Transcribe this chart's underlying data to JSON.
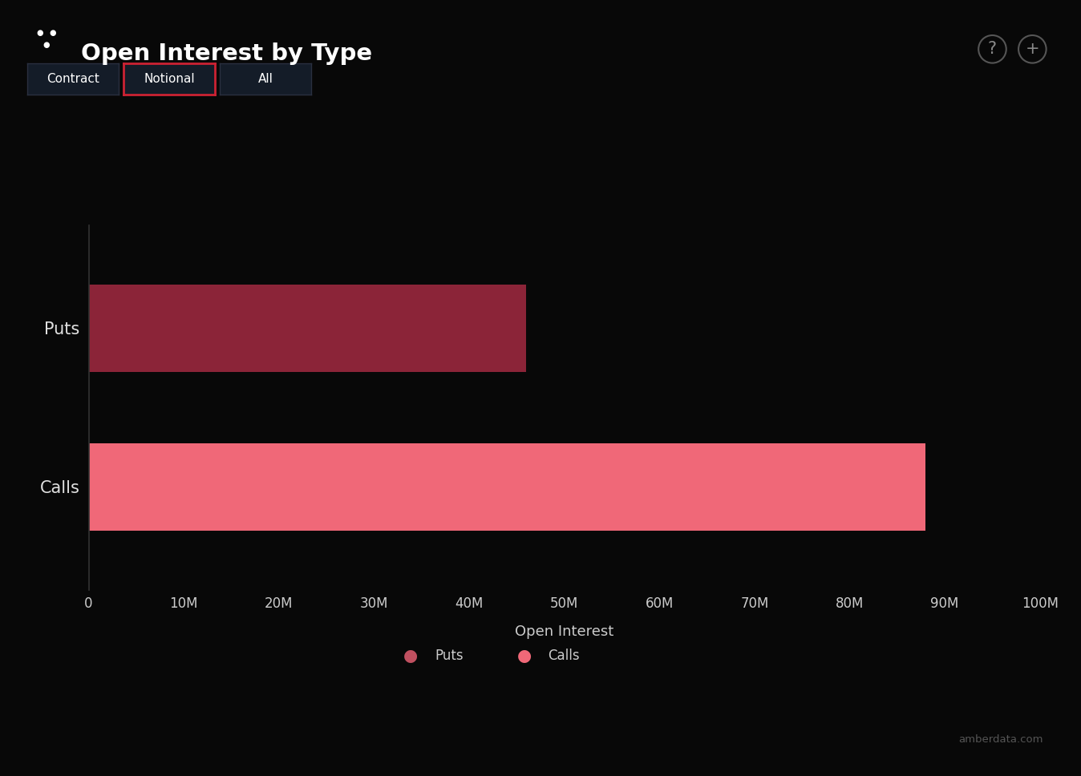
{
  "title": "Open Interest by Type",
  "categories": [
    "Puts",
    "Calls"
  ],
  "values": [
    46000000,
    88000000
  ],
  "bar_colors": [
    "#8B2438",
    "#F06878"
  ],
  "legend_colors": [
    "#C05060",
    "#F06878"
  ],
  "xlabel": "Open Interest",
  "xlim": [
    0,
    100000000
  ],
  "xtick_labels": [
    "0",
    "10M",
    "20M",
    "30M",
    "40M",
    "50M",
    "60M",
    "70M",
    "80M",
    "90M",
    "100M"
  ],
  "xtick_values": [
    0,
    10000000,
    20000000,
    30000000,
    40000000,
    50000000,
    60000000,
    70000000,
    80000000,
    90000000,
    100000000
  ],
  "background_color": "#080808",
  "axes_background": "#080808",
  "text_color": "#e0e0e0",
  "tick_color": "#cccccc",
  "bar_height": 0.55,
  "watermark": "amberdata.com",
  "buttons": [
    "Contract",
    "Notional",
    "All"
  ],
  "active_button": "Notional",
  "legend_labels": [
    "Puts",
    "Calls"
  ],
  "spine_color": "#333333",
  "button_bg": "#141c28",
  "active_border": "#cc2233",
  "inactive_border": "#2a3040"
}
